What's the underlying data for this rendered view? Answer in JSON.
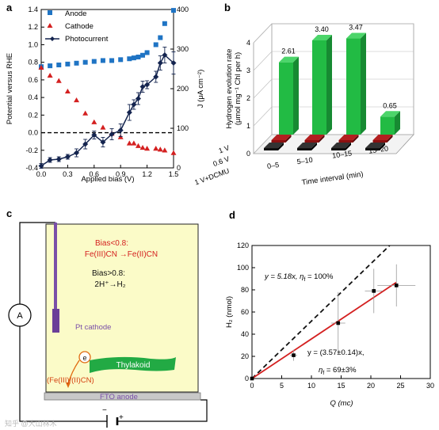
{
  "panels": {
    "a": "a",
    "b": "b",
    "c": "c",
    "d": "d"
  },
  "chart_data": [
    {
      "panel": "a",
      "type": "line",
      "xlabel": "Applied bias (V)",
      "ylabel_left": "Potential versus RHE",
      "ylabel_right": "J (μA cm⁻²)",
      "xlim": [
        0,
        1.5
      ],
      "ylim_left": [
        -0.4,
        1.4
      ],
      "ylim_right": [
        0,
        400
      ],
      "xticks": [
        "0.0",
        "0.3",
        "0.6",
        "0.9",
        "1.2",
        "1.5"
      ],
      "yticks_left": [
        "-0.4",
        "-0.2",
        "0.0",
        "0.2",
        "0.4",
        "0.6",
        "0.8",
        "1.0",
        "1.2",
        "1.4"
      ],
      "yticks_right": [
        "0",
        "100",
        "200",
        "300",
        "400"
      ],
      "legend": [
        "Anode",
        "Cathode",
        "Photocurrent"
      ],
      "legend_position": "top-left",
      "reference_line": {
        "y": 0.0,
        "style": "dashed"
      },
      "series": [
        {
          "name": "Anode",
          "marker": "square",
          "color": "#1f74c4",
          "x": [
            0.0,
            0.1,
            0.2,
            0.3,
            0.4,
            0.5,
            0.6,
            0.7,
            0.8,
            0.9,
            1.0,
            1.05,
            1.1,
            1.15,
            1.2,
            1.3,
            1.35,
            1.4,
            1.5
          ],
          "y": [
            0.75,
            0.76,
            0.77,
            0.78,
            0.79,
            0.8,
            0.81,
            0.82,
            0.82,
            0.83,
            0.84,
            0.85,
            0.86,
            0.88,
            0.91,
            1.0,
            1.08,
            1.24,
            1.39
          ]
        },
        {
          "name": "Cathode",
          "marker": "triangle",
          "color": "#d42020",
          "x": [
            0.0,
            0.1,
            0.2,
            0.3,
            0.4,
            0.5,
            0.6,
            0.7,
            0.8,
            0.9,
            1.0,
            1.05,
            1.1,
            1.15,
            1.2,
            1.3,
            1.35,
            1.4,
            1.5
          ],
          "y": [
            0.74,
            0.65,
            0.59,
            0.47,
            0.37,
            0.22,
            0.12,
            0.06,
            -0.01,
            -0.05,
            -0.12,
            -0.12,
            -0.15,
            -0.17,
            -0.18,
            -0.18,
            -0.19,
            -0.2,
            -0.23
          ]
        },
        {
          "name": "Photocurrent",
          "marker": "diamond",
          "color": "#14244f",
          "axis": "right",
          "x": [
            0.0,
            0.1,
            0.2,
            0.3,
            0.4,
            0.5,
            0.6,
            0.7,
            0.8,
            0.9,
            1.0,
            1.05,
            1.1,
            1.15,
            1.2,
            1.3,
            1.35,
            1.4,
            1.5
          ],
          "y": [
            5,
            20,
            22,
            28,
            38,
            60,
            83,
            65,
            85,
            95,
            140,
            160,
            175,
            205,
            210,
            230,
            265,
            285,
            265
          ],
          "err": [
            6,
            6,
            6,
            6,
            10,
            12,
            10,
            12,
            14,
            16,
            20,
            12,
            15,
            14,
            10,
            14,
            18,
            20,
            28
          ]
        }
      ]
    },
    {
      "panel": "b",
      "type": "bar",
      "ylabel": "Hydrogen evolution rate (μmol mg⁻¹ Chl per h)",
      "ylim": [
        0,
        4
      ],
      "yticks": [
        "0",
        "1",
        "2",
        "3",
        "4"
      ],
      "xlabel": "Time interval (min)",
      "categories": [
        "0–5",
        "5–10",
        "10–15",
        "15–20"
      ],
      "rows": [
        "1 V",
        "0.6 V",
        "1 V+DCMU"
      ],
      "series": [
        {
          "name": "1 V",
          "color": "#22bb44",
          "values": [
            2.61,
            3.4,
            3.47,
            0.65
          ]
        },
        {
          "name": "0.6 V",
          "color": "#8b1010",
          "values": [
            0.05,
            0.05,
            0.05,
            0.05
          ]
        },
        {
          "name": "1 V+DCMU",
          "color": "#111111",
          "values": [
            0.05,
            0.05,
            0.05,
            0.05
          ]
        }
      ],
      "data_labels": [
        "2.61",
        "3.40",
        "3.47",
        "0.65"
      ]
    },
    {
      "panel": "d",
      "type": "scatter",
      "xlabel": "Q (mc)",
      "ylabel": "H₂ (nmol)",
      "xlim": [
        0,
        30
      ],
      "ylim": [
        0,
        120
      ],
      "xticks": [
        "0",
        "5",
        "10",
        "15",
        "20",
        "25",
        "30"
      ],
      "yticks": [
        "0",
        "20",
        "40",
        "60",
        "80",
        "100",
        "120"
      ],
      "points": {
        "x": [
          0,
          7,
          14.5,
          20.5,
          24.3
        ],
        "y": [
          0,
          21,
          50,
          79,
          84
        ],
        "xerr": [
          0,
          0.6,
          1.2,
          1.5,
          3.2
        ],
        "yerr": [
          0,
          5,
          28,
          20,
          19
        ]
      },
      "lines": [
        {
          "label_eq": "y = 5.18x, ",
          "label_eta": "η",
          "label_sub": "f",
          "label_val": " = 100%",
          "slope": 5.18,
          "style": "dashed",
          "color": "#111111"
        },
        {
          "label_eq": "y = (3.57±0.14)x,",
          "label_eta": "η",
          "label_sub": "f",
          "label_val": " = 69±3%",
          "slope": 3.57,
          "style": "solid",
          "color": "#d42020"
        }
      ]
    }
  ],
  "diagram_c": {
    "ammeter": "A",
    "bias_lt": "Bias<0.8:",
    "reaction_lt": "Fe(III)CN →Fe(II)CN",
    "bias_gt": "Bias>0.8:",
    "reaction_gt": "2H⁺→H₂",
    "pt_cathode": "Pt cathode",
    "electron": "e",
    "thylakoid": "Thylakoid",
    "mediator": "(Fe(III)/(II)CN)",
    "fto_anode": "FTO anode",
    "plus": "+",
    "minus": "−"
  },
  "watermark": "知乎 @大山林木",
  "colors": {
    "anode": "#1f74c4",
    "cathode": "#d42020",
    "photocurrent": "#14244f",
    "bar_green": "#22bb44",
    "cell_fill": "#fbfbc8",
    "electrode": "#7a4fa8",
    "thylakoid": "#22aa44"
  }
}
